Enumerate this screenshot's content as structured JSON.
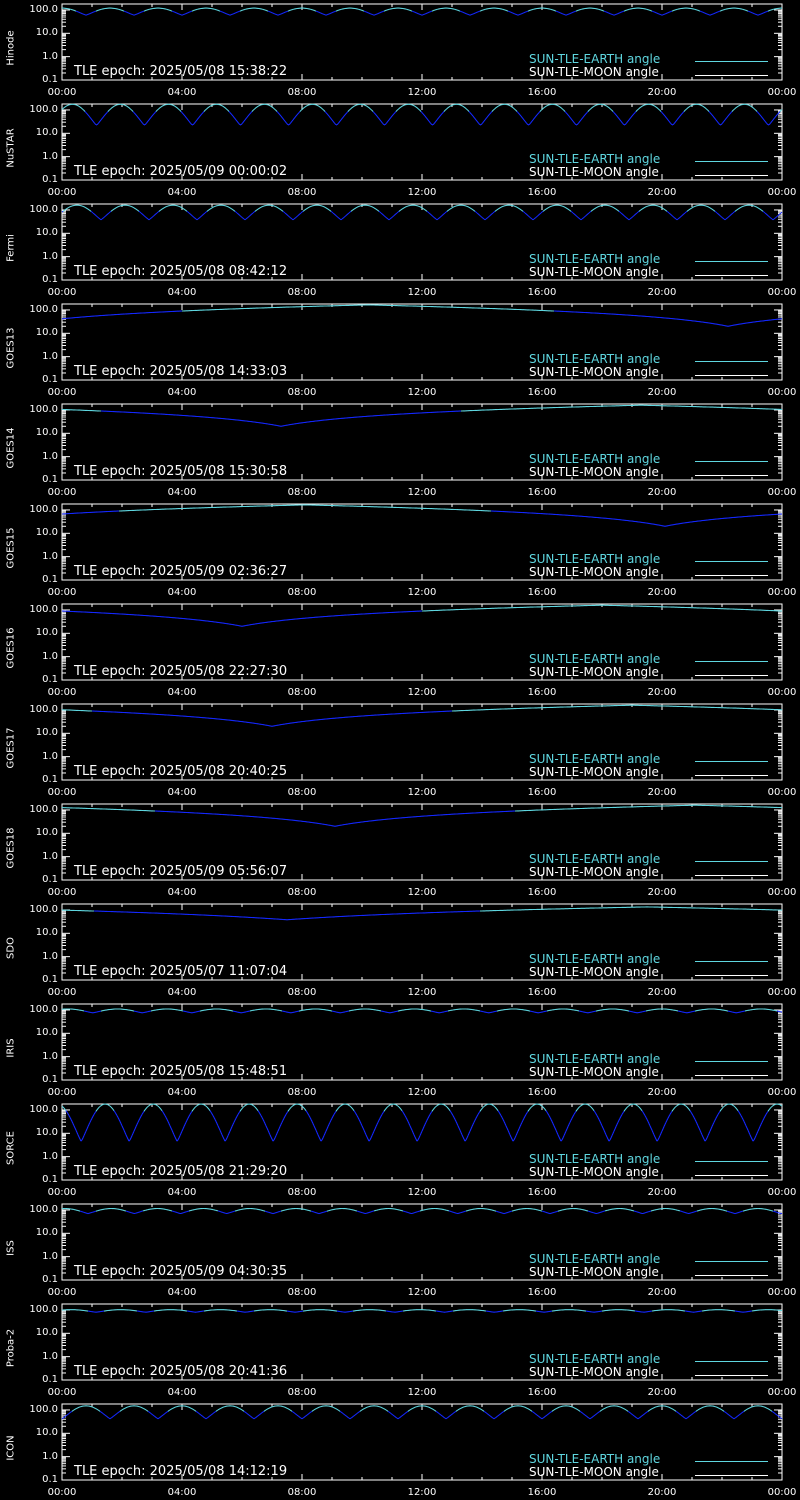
{
  "colors": {
    "background": "#000000",
    "axes": "#ffffff",
    "sun_earth": "#5fd7e0",
    "sun_moon": "#ffffff",
    "low_angle": "#1428ff"
  },
  "legend": {
    "sun_earth_label": "SUN-TLE-EARTH angle",
    "sun_moon_label": "SUN-TLE-MOON angle"
  },
  "epoch_prefix": "TLE epoch: ",
  "x_ticks": [
    "00:00",
    "04:00",
    "08:00",
    "12:00",
    "16:00",
    "20:00",
    "00:00"
  ],
  "y_ticks": [
    "100.0",
    "10.0",
    "1.0",
    "0.1"
  ],
  "chart_data": [
    {
      "type": "line",
      "satellite": "Hinode",
      "epoch": "2025/05/08 15:38:22",
      "xlim": [
        0,
        24
      ],
      "ylim": [
        0.1,
        180
      ],
      "yscale": "log",
      "series": [
        {
          "name": "SUN-TLE-EARTH angle",
          "model": "orbital",
          "period_h": 1.6,
          "min_deg": 60,
          "max_deg": 120,
          "phase_h": 0.0
        }
      ]
    },
    {
      "type": "line",
      "satellite": "NuSTAR",
      "epoch": "2025/05/09 00:00:02",
      "xlim": [
        0,
        24
      ],
      "ylim": [
        0.1,
        180
      ],
      "yscale": "log",
      "series": [
        {
          "name": "SUN-TLE-EARTH angle",
          "model": "orbital",
          "period_h": 1.6,
          "min_deg": 22,
          "max_deg": 175,
          "phase_h": 0.35
        }
      ]
    },
    {
      "type": "line",
      "satellite": "Fermi",
      "epoch": "2025/05/08 08:42:12",
      "xlim": [
        0,
        24
      ],
      "ylim": [
        0.1,
        180
      ],
      "yscale": "log",
      "series": [
        {
          "name": "SUN-TLE-EARTH angle",
          "model": "orbital",
          "period_h": 1.6,
          "min_deg": 38,
          "max_deg": 160,
          "phase_h": 0.5
        }
      ]
    },
    {
      "type": "line",
      "satellite": "GOES13",
      "epoch": "2025/05/08 14:33:03",
      "xlim": [
        0,
        24
      ],
      "ylim": [
        0.1,
        180
      ],
      "yscale": "log",
      "series": [
        {
          "name": "SUN-TLE-EARTH angle",
          "model": "geo",
          "min_deg": 20,
          "max_deg": 165,
          "min_h": 22.2
        }
      ]
    },
    {
      "type": "line",
      "satellite": "GOES14",
      "epoch": "2025/05/08 15:30:58",
      "xlim": [
        0,
        24
      ],
      "ylim": [
        0.1,
        180
      ],
      "yscale": "log",
      "series": [
        {
          "name": "SUN-TLE-EARTH angle",
          "model": "geo",
          "min_deg": 20,
          "max_deg": 160,
          "min_h": 7.3
        }
      ]
    },
    {
      "type": "line",
      "satellite": "GOES15",
      "epoch": "2025/05/09 02:36:27",
      "xlim": [
        0,
        24
      ],
      "ylim": [
        0.1,
        180
      ],
      "yscale": "log",
      "series": [
        {
          "name": "SUN-TLE-EARTH angle",
          "model": "geo",
          "min_deg": 20,
          "max_deg": 165,
          "min_h": 20.1
        }
      ]
    },
    {
      "type": "line",
      "satellite": "GOES16",
      "epoch": "2025/05/08 22:27:30",
      "xlim": [
        0,
        24
      ],
      "ylim": [
        0.1,
        180
      ],
      "yscale": "log",
      "series": [
        {
          "name": "SUN-TLE-EARTH angle",
          "model": "geo",
          "min_deg": 20,
          "max_deg": 160,
          "min_h": 6.0
        }
      ]
    },
    {
      "type": "line",
      "satellite": "GOES17",
      "epoch": "2025/05/08 20:40:25",
      "xlim": [
        0,
        24
      ],
      "ylim": [
        0.1,
        180
      ],
      "yscale": "log",
      "series": [
        {
          "name": "SUN-TLE-EARTH angle",
          "model": "geo",
          "min_deg": 20,
          "max_deg": 160,
          "min_h": 7.0
        }
      ]
    },
    {
      "type": "line",
      "satellite": "GOES18",
      "epoch": "2025/05/09 05:56:07",
      "xlim": [
        0,
        24
      ],
      "ylim": [
        0.1,
        180
      ],
      "yscale": "log",
      "series": [
        {
          "name": "SUN-TLE-EARTH angle",
          "model": "geo",
          "min_deg": 20,
          "max_deg": 160,
          "min_h": 9.1
        }
      ]
    },
    {
      "type": "line",
      "satellite": "SDO",
      "epoch": "2025/05/07 11:07:04",
      "xlim": [
        0,
        24
      ],
      "ylim": [
        0.1,
        180
      ],
      "yscale": "log",
      "series": [
        {
          "name": "SUN-TLE-EARTH angle",
          "model": "geo",
          "min_deg": 38,
          "max_deg": 135,
          "min_h": 7.5
        }
      ]
    },
    {
      "type": "line",
      "satellite": "IRIS",
      "epoch": "2025/05/08 15:48:51",
      "xlim": [
        0,
        24
      ],
      "ylim": [
        0.1,
        180
      ],
      "yscale": "log",
      "series": [
        {
          "name": "SUN-TLE-EARTH angle",
          "model": "orbital",
          "period_h": 1.65,
          "min_deg": 75,
          "max_deg": 110,
          "phase_h": 0.2
        }
      ]
    },
    {
      "type": "line",
      "satellite": "SORCE",
      "epoch": "2025/05/08 21:29:20",
      "xlim": [
        0,
        24
      ],
      "ylim": [
        0.1,
        180
      ],
      "yscale": "log",
      "series": [
        {
          "name": "SUN-TLE-EARTH angle",
          "model": "orbital",
          "period_h": 1.6,
          "min_deg": 4.5,
          "max_deg": 178,
          "phase_h": 1.44
        }
      ]
    },
    {
      "type": "line",
      "satellite": "ISS",
      "epoch": "2025/05/09 04:30:35",
      "xlim": [
        0,
        24
      ],
      "ylim": [
        0.1,
        180
      ],
      "yscale": "log",
      "series": [
        {
          "name": "SUN-TLE-EARTH angle",
          "model": "orbital",
          "period_h": 1.54,
          "min_deg": 70,
          "max_deg": 115,
          "phase_h": 0.1
        }
      ]
    },
    {
      "type": "line",
      "satellite": "Proba-2",
      "epoch": "2025/05/08 20:41:36",
      "xlim": [
        0,
        24
      ],
      "ylim": [
        0.1,
        180
      ],
      "yscale": "log",
      "series": [
        {
          "name": "SUN-TLE-EARTH angle",
          "model": "orbital",
          "period_h": 1.66,
          "min_deg": 80,
          "max_deg": 103,
          "phase_h": 0.3
        }
      ]
    },
    {
      "type": "line",
      "satellite": "ICON",
      "epoch": "2025/05/08 14:12:19",
      "xlim": [
        0,
        24
      ],
      "ylim": [
        0.1,
        180
      ],
      "yscale": "log",
      "series": [
        {
          "name": "SUN-TLE-EARTH angle",
          "model": "orbital",
          "period_h": 1.6,
          "min_deg": 42,
          "max_deg": 150,
          "phase_h": 0.8
        }
      ]
    }
  ]
}
